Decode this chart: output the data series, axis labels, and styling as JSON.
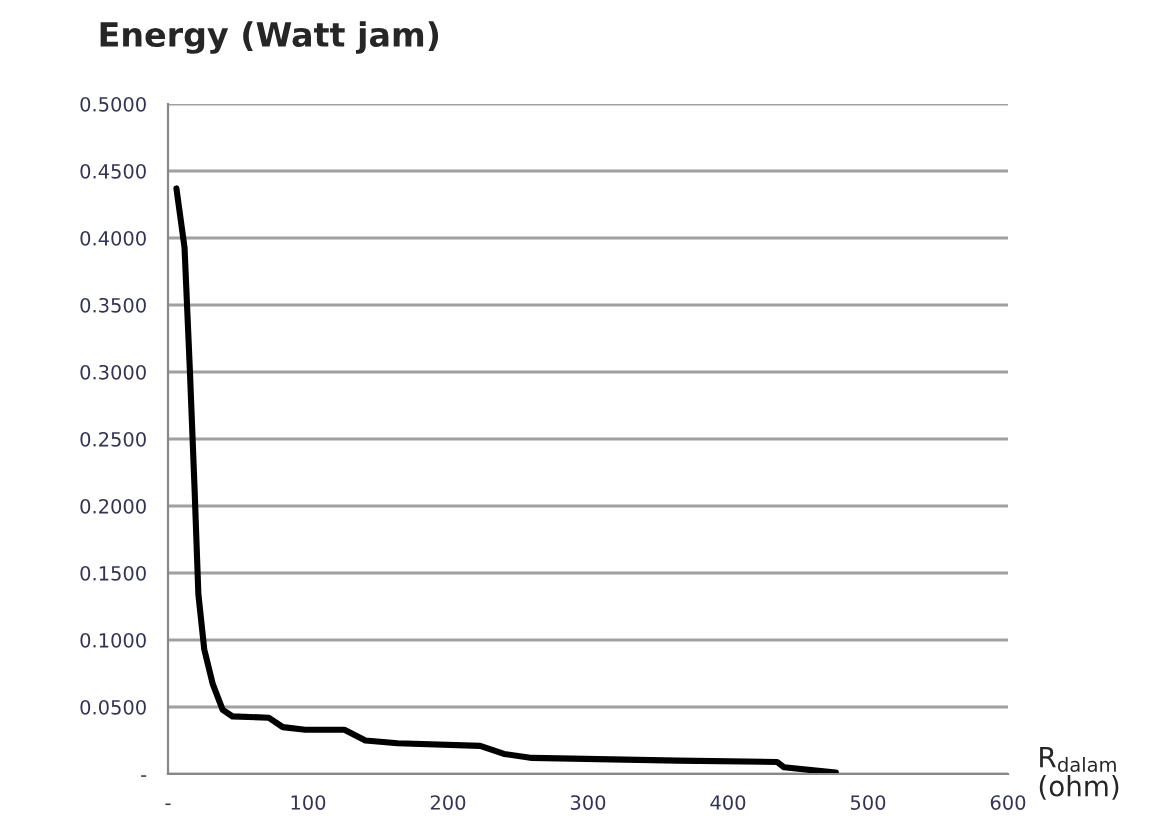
{
  "chart_data": {
    "type": "line",
    "title": "Energy (Watt jam)",
    "xlabel": "R$_{dalam}$\n(ohm)",
    "x": [
      6,
      11.8,
      15.6,
      18.9,
      21.7,
      25.9,
      32,
      39,
      46,
      72,
      82,
      98,
      126,
      141,
      164,
      223,
      240,
      260,
      364,
      435,
      440,
      477
    ],
    "series": [
      {
        "color": "#000000",
        "values": [
          0.437,
          0.393,
          0.302,
          0.215,
          0.134,
          0.093,
          0.067,
          0.048,
          0.043,
          0.042,
          0.035,
          0.033,
          0.033,
          0.025,
          0.023,
          0.021,
          0.015,
          0.012,
          0.01,
          0.009,
          0.005,
          0.001
        ]
      }
    ],
    "xlim": [
      0,
      600
    ],
    "ylim": [
      0,
      0.5
    ],
    "xticks": [
      {
        "value": 0,
        "label": "-"
      },
      100,
      200,
      300,
      400,
      500,
      600
    ],
    "yticks": [
      {
        "value": 0,
        "label": "-"
      },
      {
        "value": 0.05,
        "label": "0.0500"
      },
      {
        "value": 0.1,
        "label": "0.1000"
      },
      {
        "value": 0.15,
        "label": "0.1500"
      },
      {
        "value": 0.2,
        "label": "0.2000"
      },
      {
        "value": 0.25,
        "label": "0.2500"
      },
      {
        "value": 0.3,
        "label": "0.3000"
      },
      {
        "value": 0.35,
        "label": "0.3500"
      },
      {
        "value": 0.4,
        "label": "0.4000"
      },
      {
        "value": 0.45,
        "label": "0.4500"
      },
      {
        "value": 0.5,
        "label": "0.5000"
      }
    ],
    "grid": "y",
    "marker": "none",
    "line_style": "solid",
    "legend": false
  }
}
